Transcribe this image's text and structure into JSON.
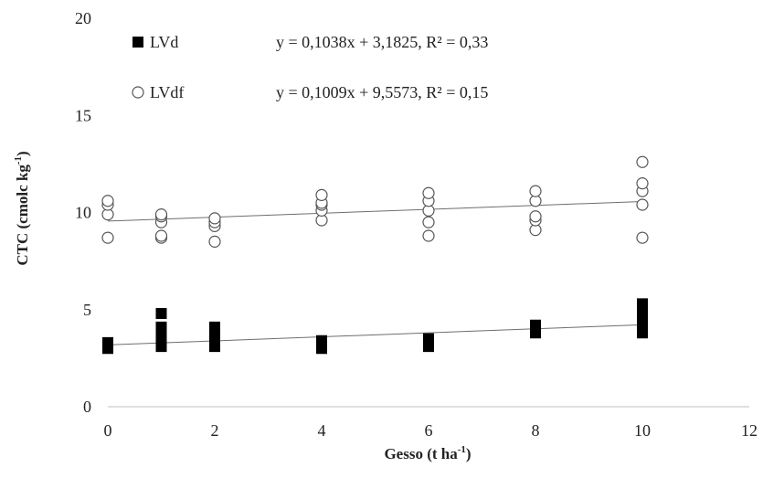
{
  "chart_data": {
    "type": "scatter",
    "xlabel": "Gesso (t ha",
    "xlabel_sup": "-1",
    "xlabel_end": ")",
    "ylabel": "CTC (cmolc kg",
    "ylabel_sup": "-1",
    "ylabel_end": ")",
    "xlim": [
      0,
      12
    ],
    "ylim": [
      0,
      20
    ],
    "xticks": [
      0,
      2,
      4,
      6,
      8,
      10,
      12
    ],
    "yticks": [
      0,
      5,
      10,
      15,
      20
    ],
    "grid": false,
    "legend_position": "top-left",
    "series": [
      {
        "name": "LVd",
        "marker": "filled-square",
        "color": "#000000",
        "points": [
          [
            0,
            3.0
          ],
          [
            0,
            3.2
          ],
          [
            0,
            3.3
          ],
          [
            0,
            3.1
          ],
          [
            1,
            3.1
          ],
          [
            1,
            3.4
          ],
          [
            1,
            3.6
          ],
          [
            1,
            3.9
          ],
          [
            1,
            4.1
          ],
          [
            1,
            4.8
          ],
          [
            2,
            3.1
          ],
          [
            2,
            3.3
          ],
          [
            2,
            3.5
          ],
          [
            2,
            3.9
          ],
          [
            2,
            4.1
          ],
          [
            4,
            3.0
          ],
          [
            4,
            3.2
          ],
          [
            4,
            3.4
          ],
          [
            6,
            3.1
          ],
          [
            6,
            3.3
          ],
          [
            6,
            3.5
          ],
          [
            8,
            3.8
          ],
          [
            8,
            4.0
          ],
          [
            8,
            4.2
          ],
          [
            10,
            3.8
          ],
          [
            10,
            4.2
          ],
          [
            10,
            4.6
          ],
          [
            10,
            4.9
          ],
          [
            10,
            5.3
          ]
        ],
        "trend": {
          "slope": 0.1038,
          "intercept": 3.1825,
          "equation": "y = 0,1038x + 3,1825, R² = 0,33"
        }
      },
      {
        "name": "LVdf",
        "marker": "open-circle",
        "color": "#000000",
        "points": [
          [
            0,
            8.7
          ],
          [
            0,
            9.9
          ],
          [
            0,
            10.4
          ],
          [
            0,
            10.6
          ],
          [
            1,
            8.7
          ],
          [
            1,
            8.8
          ],
          [
            1,
            9.5
          ],
          [
            1,
            9.8
          ],
          [
            1,
            9.9
          ],
          [
            2,
            8.5
          ],
          [
            2,
            9.3
          ],
          [
            2,
            9.5
          ],
          [
            2,
            9.7
          ],
          [
            4,
            9.6
          ],
          [
            4,
            10.1
          ],
          [
            4,
            10.4
          ],
          [
            4,
            10.5
          ],
          [
            4,
            10.9
          ],
          [
            6,
            8.8
          ],
          [
            6,
            9.5
          ],
          [
            6,
            10.1
          ],
          [
            6,
            10.6
          ],
          [
            6,
            11.0
          ],
          [
            8,
            9.1
          ],
          [
            8,
            9.6
          ],
          [
            8,
            9.8
          ],
          [
            8,
            10.6
          ],
          [
            8,
            11.1
          ],
          [
            10,
            8.7
          ],
          [
            10,
            10.4
          ],
          [
            10,
            11.1
          ],
          [
            10,
            11.5
          ],
          [
            10,
            12.6
          ]
        ],
        "trend": {
          "slope": 0.1009,
          "intercept": 9.5573,
          "equation": "y = 0,1009x + 9,5573, R² = 0,15"
        }
      }
    ]
  }
}
